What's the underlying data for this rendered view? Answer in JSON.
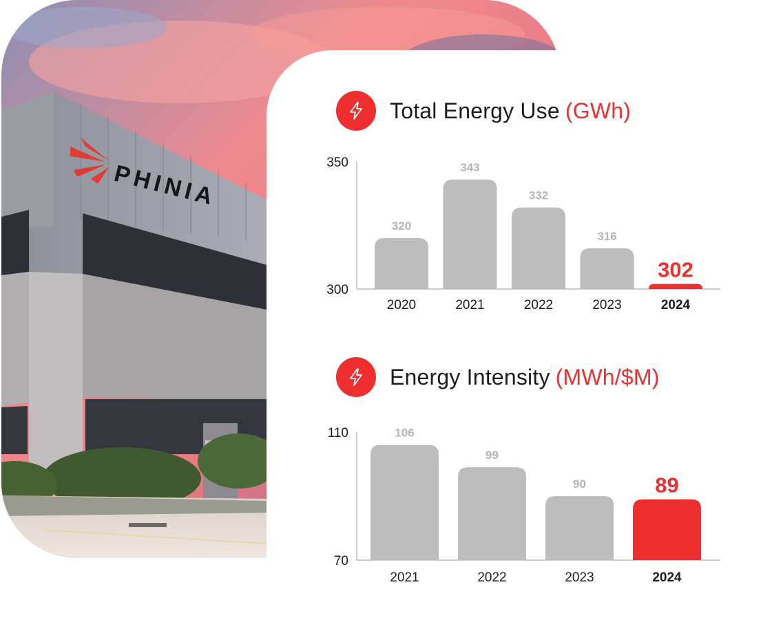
{
  "photo": {
    "sign_text": "PHINIA"
  },
  "colors": {
    "accent": "#ee2e2f",
    "bar": "#bdbdbd",
    "value_label": "#b5b5b5",
    "axis_text": "#1d1d1b"
  },
  "chart_data": [
    {
      "type": "bar",
      "title": "Total Energy Use",
      "unit": "(GWh)",
      "icon": "lightning-icon",
      "categories": [
        "2020",
        "2021",
        "2022",
        "2023",
        "2024"
      ],
      "values": [
        320,
        343,
        332,
        316,
        302
      ],
      "value_labels": [
        "320",
        "343",
        "332",
        "316",
        "302"
      ],
      "ylim": [
        300,
        350
      ],
      "yticks": [
        "300",
        "350"
      ],
      "highlight": "2024",
      "grid": false
    },
    {
      "type": "bar",
      "title": "Energy Intensity",
      "unit": "(MWh/$M)",
      "icon": "lightning-icon",
      "categories": [
        "2021",
        "2022",
        "2023",
        "2024"
      ],
      "values": [
        106,
        99,
        90,
        89
      ],
      "value_labels": [
        "106",
        "99",
        "90",
        "89"
      ],
      "ylim": [
        70,
        110
      ],
      "yticks": [
        "70",
        "110"
      ],
      "highlight": "2024",
      "grid": false
    }
  ]
}
